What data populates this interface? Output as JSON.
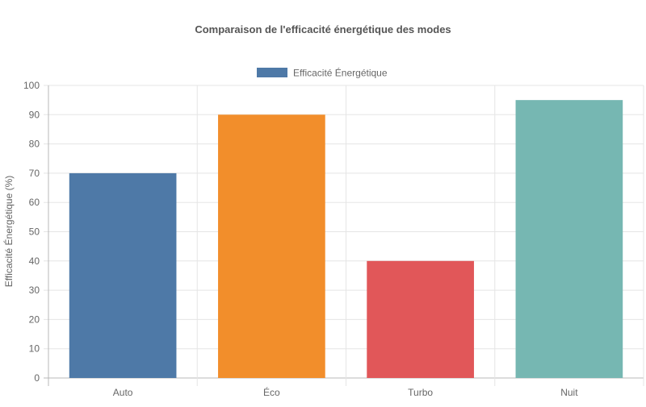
{
  "chart_data": {
    "type": "bar",
    "title": "Comparaison de l'efficacité énergétique des modes",
    "categories": [
      "Auto",
      "Éco",
      "Turbo",
      "Nuit"
    ],
    "series": [
      {
        "name": "Efficacité Énergétique",
        "values": [
          70,
          90,
          40,
          95
        ],
        "colors": [
          "#4e79a7",
          "#f28e2b",
          "#e15759",
          "#76b7b2"
        ]
      }
    ],
    "xlabel": "",
    "ylabel": "Efficacité Énergétique (%)",
    "ylim": [
      0,
      100
    ],
    "yticks": [
      0,
      10,
      20,
      30,
      40,
      50,
      60,
      70,
      80,
      90,
      100
    ],
    "legend": {
      "position": "top",
      "color": "#4e79a7"
    },
    "grid": true
  }
}
